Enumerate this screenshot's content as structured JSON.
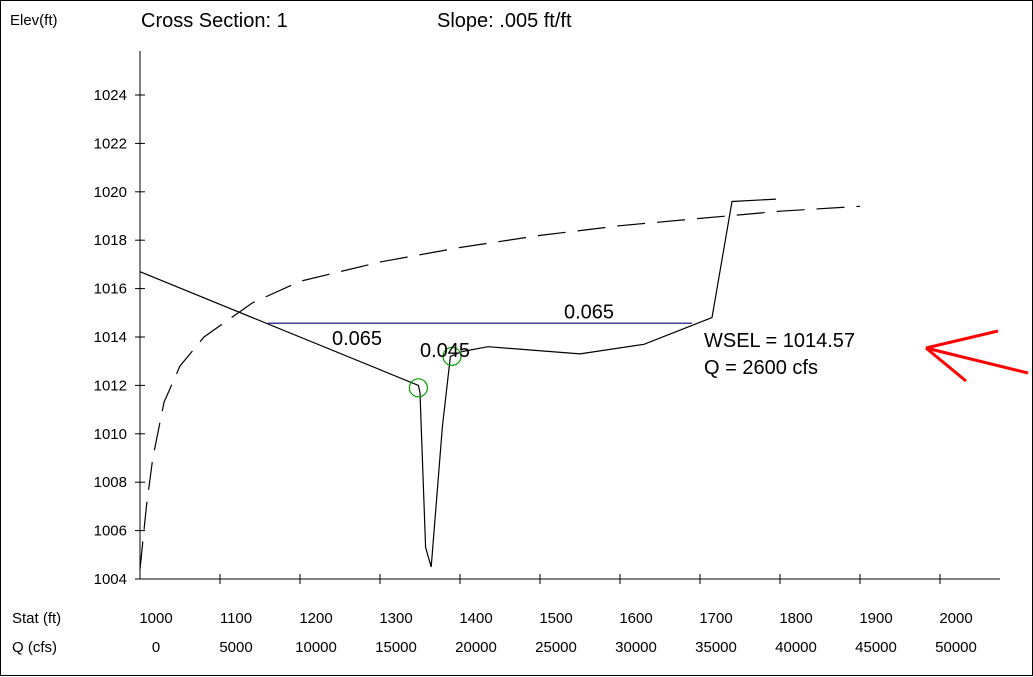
{
  "header": {
    "ylabel": "Elev(ft)",
    "title": "Cross Section: 1",
    "slope": "Slope: .005 ft/ft"
  },
  "axis_labels": {
    "stat": "Stat (ft)",
    "q": "Q  (cfs)"
  },
  "chart_data": {
    "type": "line",
    "title": "Cross Section: 1",
    "ylabel": "Elev(ft)",
    "xlabel": "Stat (ft)",
    "secondary_xlabel": "Q  (cfs)",
    "xlim": [
      1000,
      2000
    ],
    "ylim": [
      1004,
      1026
    ],
    "y_ticks": [
      1004,
      1006,
      1008,
      1010,
      1012,
      1014,
      1016,
      1018,
      1020,
      1022,
      1024
    ],
    "x_ticks": [
      1000,
      1100,
      1200,
      1300,
      1400,
      1500,
      1600,
      1700,
      1800,
      1900,
      2000
    ],
    "q_ticks": [
      0,
      5000,
      10000,
      15000,
      20000,
      25000,
      30000,
      35000,
      40000,
      45000,
      50000
    ],
    "grid": false,
    "series": [
      {
        "style": "solid",
        "color": "#000000",
        "x": [
          1000,
          1348,
          1350,
          1357,
          1364,
          1378,
          1388,
          1403,
          1435,
          1550,
          1630,
          1715,
          1740,
          1795
        ],
        "y": [
          1016.7,
          1012.0,
          1011.7,
          1005.3,
          1004.5,
          1010.3,
          1013.2,
          1013.4,
          1013.6,
          1013.3,
          1013.7,
          1014.8,
          1019.6,
          1019.7
        ]
      },
      {
        "style": "dashed",
        "color": "#000000",
        "q": [
          0,
          400,
          800,
          1500,
          2500,
          4000,
          7000,
          10000,
          15000,
          20000,
          25000,
          30000,
          35000,
          40000,
          45000
        ],
        "y": [
          1004.4,
          1007.0,
          1009.0,
          1011.3,
          1012.8,
          1014.0,
          1015.4,
          1016.3,
          1017.1,
          1017.7,
          1018.2,
          1018.6,
          1018.9,
          1019.2,
          1019.4
        ]
      },
      {
        "style": "solid",
        "color": "#000080",
        "x": [
          1160,
          1690
        ],
        "y": [
          1014.57,
          1014.57
        ]
      }
    ],
    "markers": [
      {
        "x": 1348,
        "y": 1011.9,
        "shape": "circle",
        "color": "#00a000"
      },
      {
        "x": 1390,
        "y": 1013.2,
        "shape": "circle",
        "color": "#00a000"
      }
    ],
    "annotations": [
      {
        "text": "0.065",
        "x": 1240,
        "y": 1014.0
      },
      {
        "text": "0.045",
        "x": 1350,
        "y": 1013.5
      },
      {
        "text": "0.065",
        "x": 1530,
        "y": 1015.1
      }
    ],
    "wsel_label": "WSEL = 1014.57",
    "q_label": "Q = 2600 cfs",
    "arrow_color": "#ff0000"
  }
}
